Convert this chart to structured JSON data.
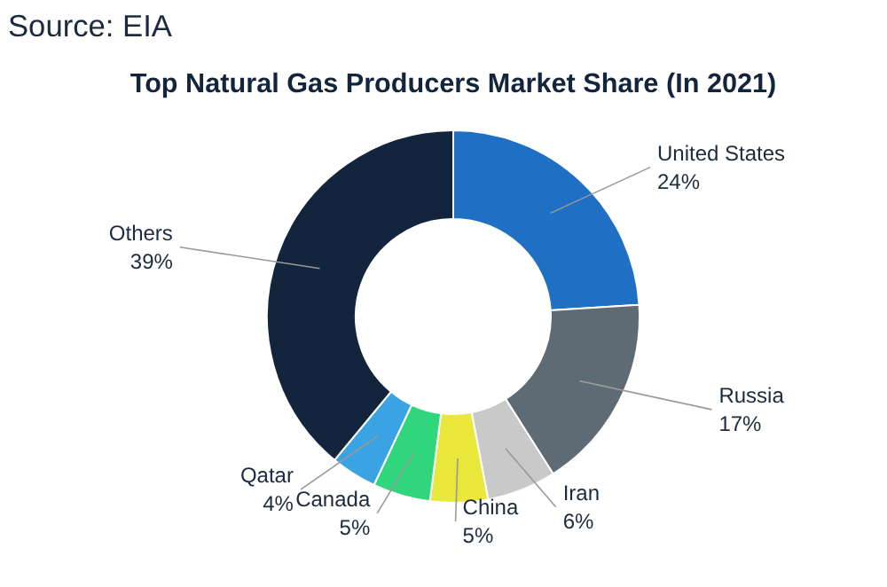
{
  "chart_data": {
    "type": "donut",
    "title": "Top Natural Gas Producers Market Share (In 2021)",
    "annotations": [
      "Source: EIA"
    ],
    "categories": [
      "United States",
      "Russia",
      "Iran",
      "China",
      "Canada",
      "Qatar",
      "Others"
    ],
    "values": [
      24,
      17,
      6,
      5,
      5,
      4,
      39
    ],
    "value_labels": [
      "24%",
      "17%",
      "6%",
      "5%",
      "5%",
      "4%",
      "39%"
    ],
    "colors": [
      "#1f6fc4",
      "#5e6b74",
      "#c9c9c9",
      "#e9e83a",
      "#2fd67c",
      "#3aa3e3",
      "#13243d"
    ]
  }
}
